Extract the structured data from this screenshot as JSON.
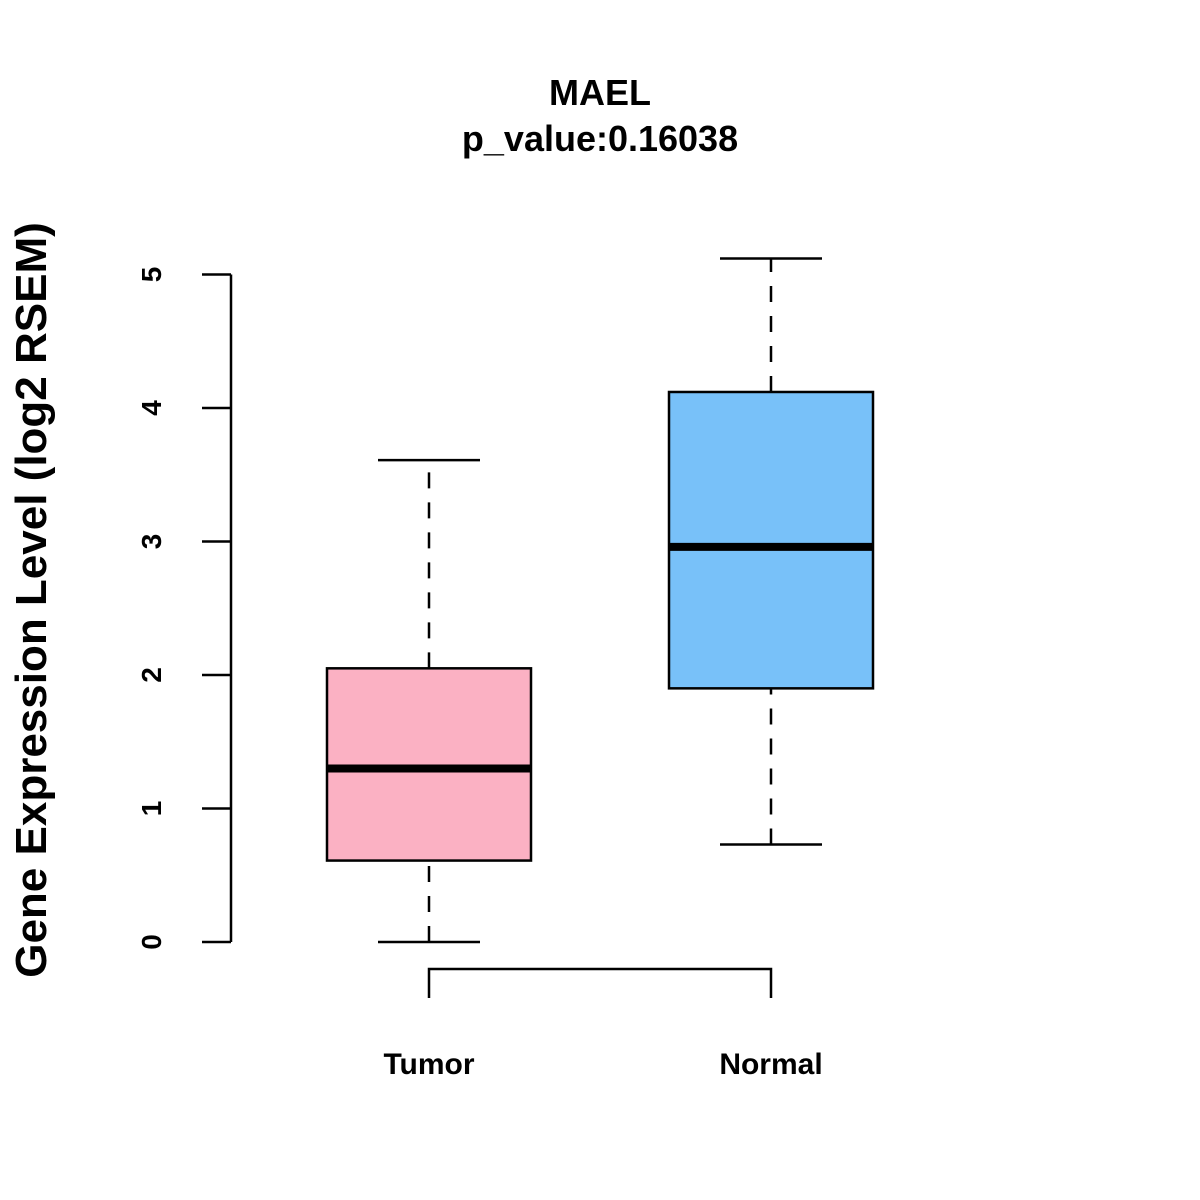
{
  "chart_data": {
    "type": "box",
    "title": "MAEL",
    "subtitle": "p_value:0.16038",
    "xlabel": "",
    "ylabel": "Gene Expression Level (log2 RSEM)",
    "ylim": [
      0,
      5
    ],
    "yticks": [
      0,
      1,
      2,
      3,
      4,
      5
    ],
    "grid": false,
    "legend": "none",
    "categories": [
      "Tumor",
      "Normal"
    ],
    "boxes": [
      {
        "name": "Tumor",
        "whisker_low": 0.0,
        "q1": 0.61,
        "median": 1.3,
        "q3": 2.05,
        "whisker_high": 3.61,
        "color": "#FBB1C3"
      },
      {
        "name": "Normal",
        "whisker_low": 0.73,
        "q1": 1.9,
        "median": 2.96,
        "q3": 4.12,
        "whisker_high": 5.12,
        "color": "#78C1F9"
      }
    ]
  }
}
